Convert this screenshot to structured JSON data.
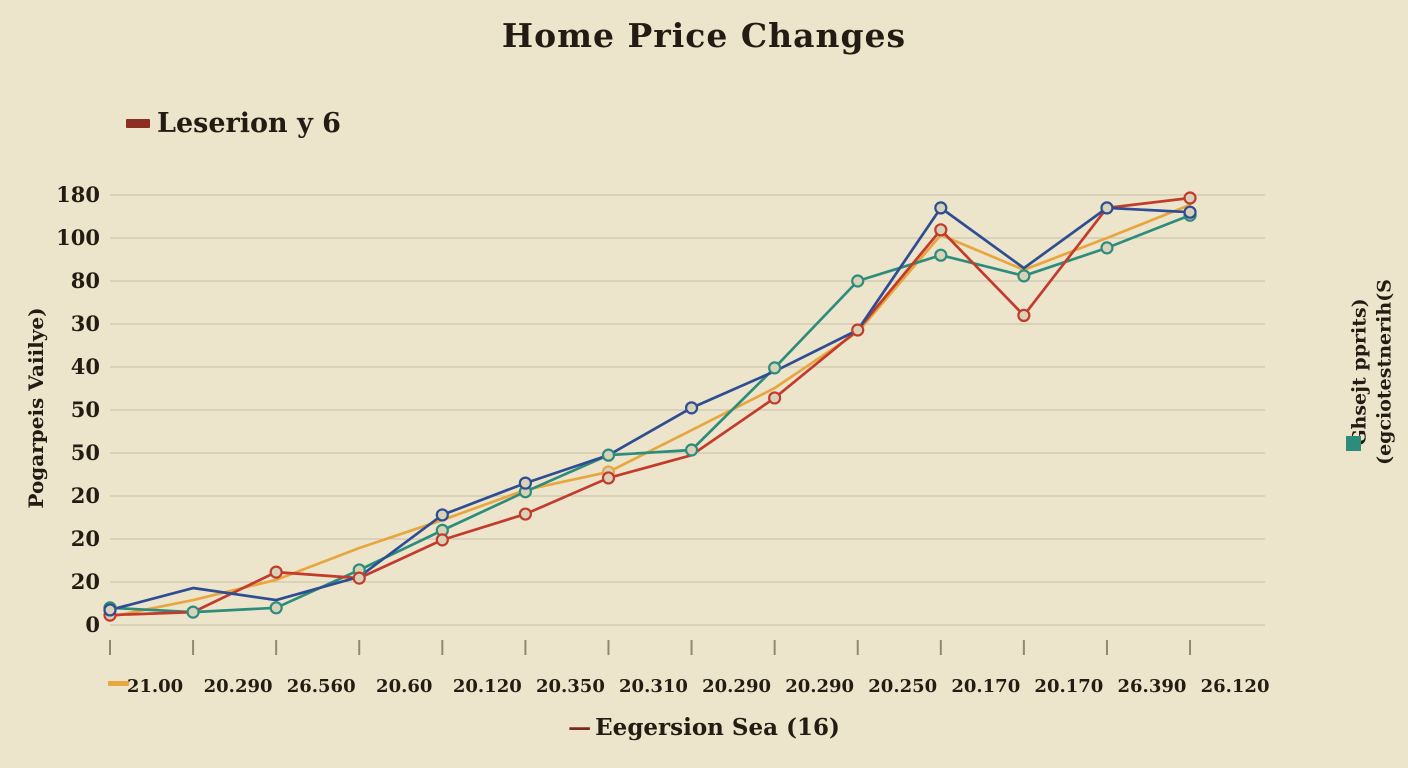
{
  "page": {
    "background": "#ece5cb"
  },
  "chart_data": {
    "type": "line",
    "title": "Home Price Changes",
    "legend_label": "Leserion y 6",
    "legend_dash_color": "#8b2f22",
    "ylabel_left": "Pogarpeis Vaiilye)",
    "right_label_line1": "Ghsejt pprits)",
    "right_label_line2": "(egciotestnerih(S",
    "right_label_square_color": "#2e8c7c",
    "xlabel_dash": "—",
    "xlabel_dash_color": "#7a2b1f",
    "xlabel_text": "Eegersion Sea (16)",
    "x_axis_dash_color": "#e8a640",
    "x_tick_labels": [
      "21.00",
      "20.290",
      "26.560",
      "20.60",
      "20.120",
      "20.350",
      "20.310",
      "20.290",
      "20.290",
      "20.250",
      "20.170",
      "20.170",
      "26.390",
      "26.120"
    ],
    "y_tick_labels": [
      "180",
      "100",
      "80",
      "30",
      "40",
      "50",
      "50",
      "20",
      "20",
      "20",
      "0"
    ],
    "grid": true,
    "legend_position": "top-left",
    "marker_fill": "#d8d2b8",
    "values_unit": "gridline-steps-from-bottom (0 = bottom '0' line, 10 = top '180' line)",
    "series": [
      {
        "name": "orange-series",
        "color": "#e8a640",
        "values": [
          0.19,
          0.58,
          1.05,
          1.79,
          2.44,
          3.14,
          3.56,
          4.53,
          5.51,
          6.81,
          9.07,
          8.26,
          9.0,
          9.77
        ],
        "markers": [
          6
        ]
      },
      {
        "name": "teal-series",
        "color": "#2e8c7c",
        "values": [
          0.4,
          0.3,
          0.4,
          1.28,
          2.2,
          3.1,
          3.95,
          4.07,
          5.98,
          8.0,
          8.6,
          8.12,
          8.77,
          9.53
        ],
        "markers": [
          0,
          1,
          2,
          3,
          4,
          5,
          6,
          7,
          8,
          9,
          10,
          11,
          12,
          13
        ]
      },
      {
        "name": "red-series",
        "color": "#c23b2c",
        "values": [
          0.23,
          0.3,
          1.23,
          1.09,
          1.98,
          2.58,
          3.42,
          3.95,
          5.28,
          6.86,
          9.19,
          7.2,
          9.7,
          9.93
        ],
        "markers": [
          0,
          2,
          3,
          4,
          5,
          6,
          8,
          9,
          10,
          11,
          13
        ]
      },
      {
        "name": "blue-series",
        "color": "#2e4d92",
        "values": [
          0.35,
          0.86,
          0.58,
          1.12,
          2.56,
          3.3,
          3.95,
          5.05,
          5.9,
          6.86,
          9.7,
          8.3,
          9.7,
          9.6
        ],
        "markers": [
          0,
          4,
          5,
          7,
          10,
          12,
          13
        ]
      }
    ]
  }
}
